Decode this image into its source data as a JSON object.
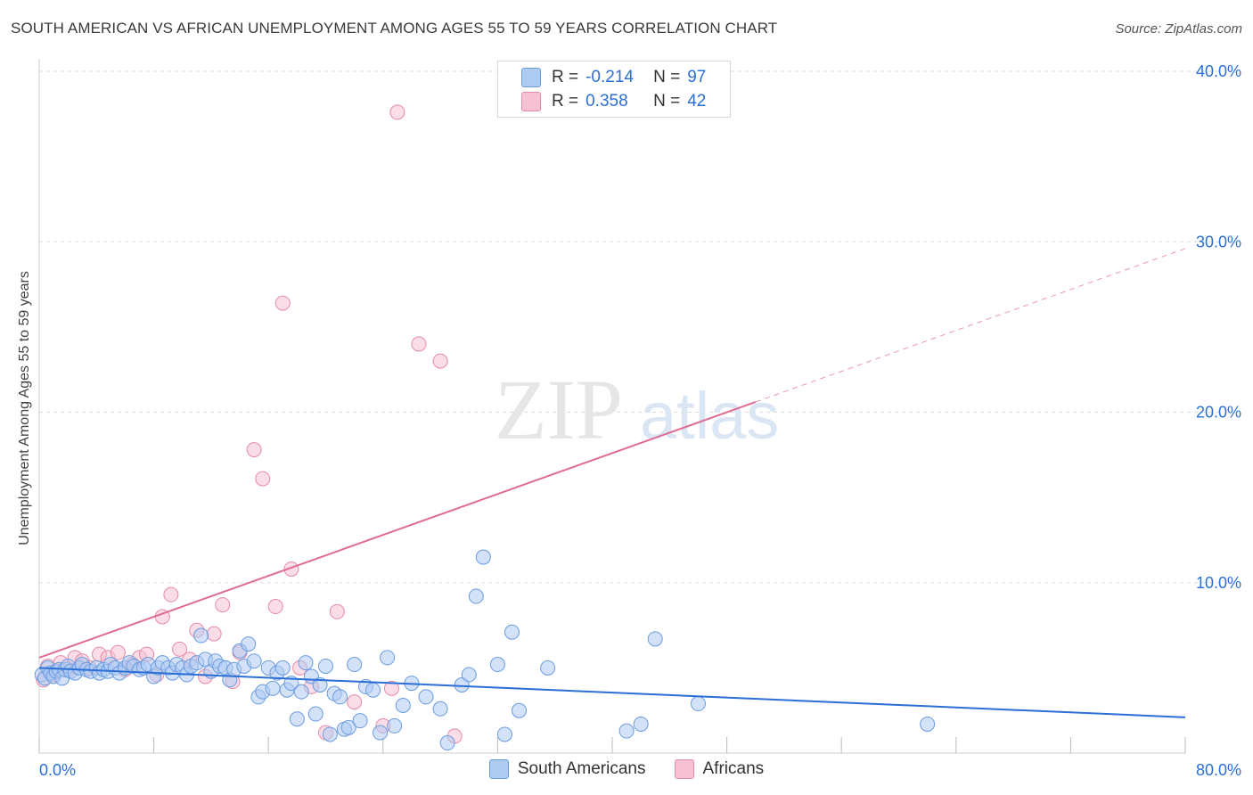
{
  "title": "SOUTH AMERICAN VS AFRICAN UNEMPLOYMENT AMONG AGES 55 TO 59 YEARS CORRELATION CHART",
  "source": "Source: ZipAtlas.com",
  "watermark": {
    "zip": "ZIP",
    "atlas": "atlas"
  },
  "legend": {
    "r_label": "R =",
    "n_label": "N =",
    "south": {
      "r": "-0.214",
      "n": "97"
    },
    "african": {
      "r": "0.358",
      "n": "42"
    }
  },
  "colors": {
    "south_fill": "#aecbf2",
    "south_stroke": "#6a9be0",
    "south_line": "#2a6fd6",
    "african_fill": "#f6c1d3",
    "african_stroke": "#e68aa8",
    "african_line": "#e06b93",
    "tick_label": "#2a6fd6",
    "grid": "#dddddd"
  },
  "chart_data": {
    "type": "scatter",
    "title": "SOUTH AMERICAN VS AFRICAN UNEMPLOYMENT AMONG AGES 55 TO 59 YEARS CORRELATION CHART",
    "xlabel": "",
    "ylabel": "Unemployment Among Ages 55 to 59 years",
    "xlim": [
      0,
      80
    ],
    "ylim": [
      0,
      40
    ],
    "x_tick_labels": [
      "0.0%",
      "80.0%"
    ],
    "y_ticks": [
      10,
      20,
      30,
      40
    ],
    "y_tick_labels": [
      "10.0%",
      "20.0%",
      "30.0%",
      "40.0%"
    ],
    "legend_position": "top-center",
    "series": [
      {
        "name": "South Americans",
        "r": -0.214,
        "n": 97,
        "trend": {
          "x0": 0,
          "y0": 5.0,
          "x1": 80,
          "y1": 2.1
        },
        "points": [
          [
            0.2,
            4.6
          ],
          [
            0.4,
            4.4
          ],
          [
            0.6,
            5.0
          ],
          [
            0.8,
            4.7
          ],
          [
            1.0,
            4.5
          ],
          [
            1.2,
            4.8
          ],
          [
            1.4,
            4.9
          ],
          [
            1.6,
            4.4
          ],
          [
            1.8,
            4.9
          ],
          [
            2.0,
            5.1
          ],
          [
            2.2,
            4.8
          ],
          [
            2.5,
            4.7
          ],
          [
            2.8,
            5.0
          ],
          [
            3.0,
            5.2
          ],
          [
            3.3,
            4.9
          ],
          [
            3.6,
            4.8
          ],
          [
            4.0,
            5.0
          ],
          [
            4.2,
            4.7
          ],
          [
            4.5,
            4.9
          ],
          [
            4.8,
            4.8
          ],
          [
            5.0,
            5.2
          ],
          [
            5.3,
            5.0
          ],
          [
            5.6,
            4.7
          ],
          [
            6.0,
            5.0
          ],
          [
            6.3,
            5.3
          ],
          [
            6.6,
            5.1
          ],
          [
            7.0,
            4.9
          ],
          [
            7.3,
            5.0
          ],
          [
            7.6,
            5.2
          ],
          [
            8.0,
            4.5
          ],
          [
            8.3,
            5.0
          ],
          [
            8.6,
            5.3
          ],
          [
            9.0,
            5.0
          ],
          [
            9.3,
            4.7
          ],
          [
            9.6,
            5.2
          ],
          [
            10.0,
            5.0
          ],
          [
            10.3,
            4.6
          ],
          [
            10.6,
            5.1
          ],
          [
            11.0,
            5.3
          ],
          [
            11.3,
            6.9
          ],
          [
            11.6,
            5.5
          ],
          [
            12.0,
            4.8
          ],
          [
            12.3,
            5.4
          ],
          [
            12.6,
            5.1
          ],
          [
            13.0,
            5.0
          ],
          [
            13.3,
            4.3
          ],
          [
            13.6,
            4.9
          ],
          [
            14.0,
            6.0
          ],
          [
            14.3,
            5.1
          ],
          [
            14.6,
            6.4
          ],
          [
            15.0,
            5.4
          ],
          [
            15.3,
            3.3
          ],
          [
            15.6,
            3.6
          ],
          [
            16.0,
            5.0
          ],
          [
            16.3,
            3.8
          ],
          [
            16.6,
            4.7
          ],
          [
            17.0,
            5.0
          ],
          [
            17.3,
            3.7
          ],
          [
            17.6,
            4.1
          ],
          [
            18.0,
            2.0
          ],
          [
            18.3,
            3.6
          ],
          [
            18.6,
            5.3
          ],
          [
            19.0,
            4.5
          ],
          [
            19.3,
            2.3
          ],
          [
            19.6,
            4.0
          ],
          [
            20.0,
            5.1
          ],
          [
            20.3,
            1.1
          ],
          [
            20.6,
            3.5
          ],
          [
            21.0,
            3.3
          ],
          [
            21.3,
            1.4
          ],
          [
            21.6,
            1.5
          ],
          [
            22.0,
            5.2
          ],
          [
            22.4,
            1.9
          ],
          [
            22.8,
            3.9
          ],
          [
            23.3,
            3.7
          ],
          [
            23.8,
            1.2
          ],
          [
            24.3,
            5.6
          ],
          [
            24.8,
            1.6
          ],
          [
            25.4,
            2.8
          ],
          [
            26.0,
            4.1
          ],
          [
            27.0,
            3.3
          ],
          [
            28.0,
            2.6
          ],
          [
            28.5,
            0.6
          ],
          [
            29.5,
            4.0
          ],
          [
            30.0,
            4.6
          ],
          [
            30.5,
            9.2
          ],
          [
            31.0,
            11.5
          ],
          [
            32.0,
            5.2
          ],
          [
            32.5,
            1.1
          ],
          [
            33.0,
            7.1
          ],
          [
            33.5,
            2.5
          ],
          [
            35.5,
            5.0
          ],
          [
            41.0,
            1.3
          ],
          [
            42.0,
            1.7
          ],
          [
            43.0,
            6.7
          ],
          [
            46.0,
            2.9
          ],
          [
            62.0,
            1.7
          ]
        ]
      },
      {
        "name": "Africans",
        "r": 0.358,
        "n": 42,
        "trend": {
          "x0": 0,
          "y0": 5.6,
          "x1": 50,
          "y1": 20.6,
          "dashed_to": {
            "x": 80,
            "y": 29.6
          }
        },
        "points": [
          [
            0.3,
            4.3
          ],
          [
            0.6,
            5.1
          ],
          [
            1.0,
            4.6
          ],
          [
            1.5,
            5.3
          ],
          [
            2.0,
            4.9
          ],
          [
            2.5,
            5.6
          ],
          [
            3.0,
            5.4
          ],
          [
            3.5,
            5.0
          ],
          [
            4.2,
            5.8
          ],
          [
            4.8,
            5.6
          ],
          [
            5.5,
            5.9
          ],
          [
            6.0,
            4.9
          ],
          [
            6.5,
            5.2
          ],
          [
            7.0,
            5.6
          ],
          [
            7.5,
            5.8
          ],
          [
            8.2,
            4.6
          ],
          [
            8.6,
            8.0
          ],
          [
            9.2,
            9.3
          ],
          [
            9.8,
            6.1
          ],
          [
            10.5,
            5.5
          ],
          [
            11.0,
            7.2
          ],
          [
            11.6,
            4.5
          ],
          [
            12.2,
            7.0
          ],
          [
            12.8,
            8.7
          ],
          [
            13.5,
            4.2
          ],
          [
            14.0,
            5.9
          ],
          [
            15.0,
            17.8
          ],
          [
            15.6,
            16.1
          ],
          [
            16.5,
            8.6
          ],
          [
            17.0,
            26.4
          ],
          [
            17.6,
            10.8
          ],
          [
            18.2,
            5.0
          ],
          [
            19.0,
            3.9
          ],
          [
            20.0,
            1.2
          ],
          [
            20.8,
            8.3
          ],
          [
            22.0,
            3.0
          ],
          [
            24.0,
            1.6
          ],
          [
            24.6,
            3.8
          ],
          [
            25.0,
            37.6
          ],
          [
            26.5,
            24.0
          ],
          [
            28.0,
            23.0
          ],
          [
            29.0,
            1.0
          ]
        ]
      }
    ]
  }
}
